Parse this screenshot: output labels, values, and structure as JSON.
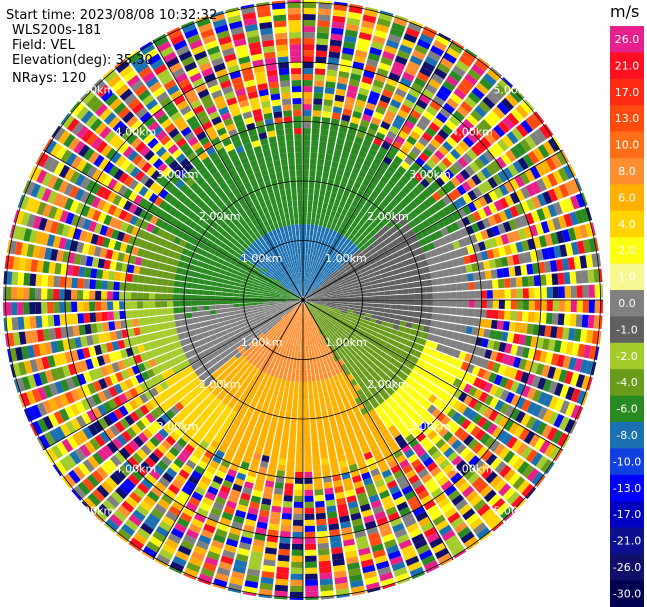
{
  "header": {
    "start_time": "Start time: 2023/08/08 10:32:32",
    "instrument": "WLS200s-181",
    "field": "Field: VEL",
    "elevation": "Elevation(deg): 35.30",
    "nrays": "NRays: 120"
  },
  "range_ring_labels": [
    "1.00km",
    "2.00km",
    "3.00km",
    "4.00km",
    "5.00km"
  ],
  "colorbar": {
    "unit": "m/s",
    "entries": [
      {
        "label": "26.0",
        "color": "#e8208c"
      },
      {
        "label": "21.0",
        "color": "#ff1020"
      },
      {
        "label": "17.0",
        "color": "#ff2a14"
      },
      {
        "label": "13.0",
        "color": "#ff4b10"
      },
      {
        "label": "10.0",
        "color": "#ff6f18"
      },
      {
        "label": "8.0",
        "color": "#ff8f2e"
      },
      {
        "label": "6.0",
        "color": "#ffb000"
      },
      {
        "label": "4.0",
        "color": "#ffd400"
      },
      {
        "label": "2.0",
        "color": "#ffff10"
      },
      {
        "label": "1.0",
        "color": "#f8f890"
      },
      {
        "label": "0.0",
        "color": "#808080"
      },
      {
        "label": "-1.0",
        "color": "#606060"
      },
      {
        "label": "-2.0",
        "color": "#a4cc2c"
      },
      {
        "label": "-4.0",
        "color": "#6a9c1c"
      },
      {
        "label": "-6.0",
        "color": "#2a8a22"
      },
      {
        "label": "-8.0",
        "color": "#1a70b0"
      },
      {
        "label": "-10.0",
        "color": "#1040e0"
      },
      {
        "label": "-13.0",
        "color": "#0000ff"
      },
      {
        "label": "-17.0",
        "color": "#0000c0"
      },
      {
        "label": "-21.0",
        "color": "#0a1090"
      },
      {
        "label": "-26.0",
        "color": "#10106a"
      },
      {
        "label": "-30.0",
        "color": "#000050"
      }
    ]
  },
  "noise_palette": [
    "#ff1020",
    "#ff8f2e",
    "#ffff10",
    "#ffd400",
    "#2a8a22",
    "#0000ff",
    "#e8208c",
    "#a4cc2c",
    "#10106a",
    "#808080",
    "#ff4b10",
    "#1a70b0",
    "#6a9c1c",
    "#ffb000"
  ]
}
